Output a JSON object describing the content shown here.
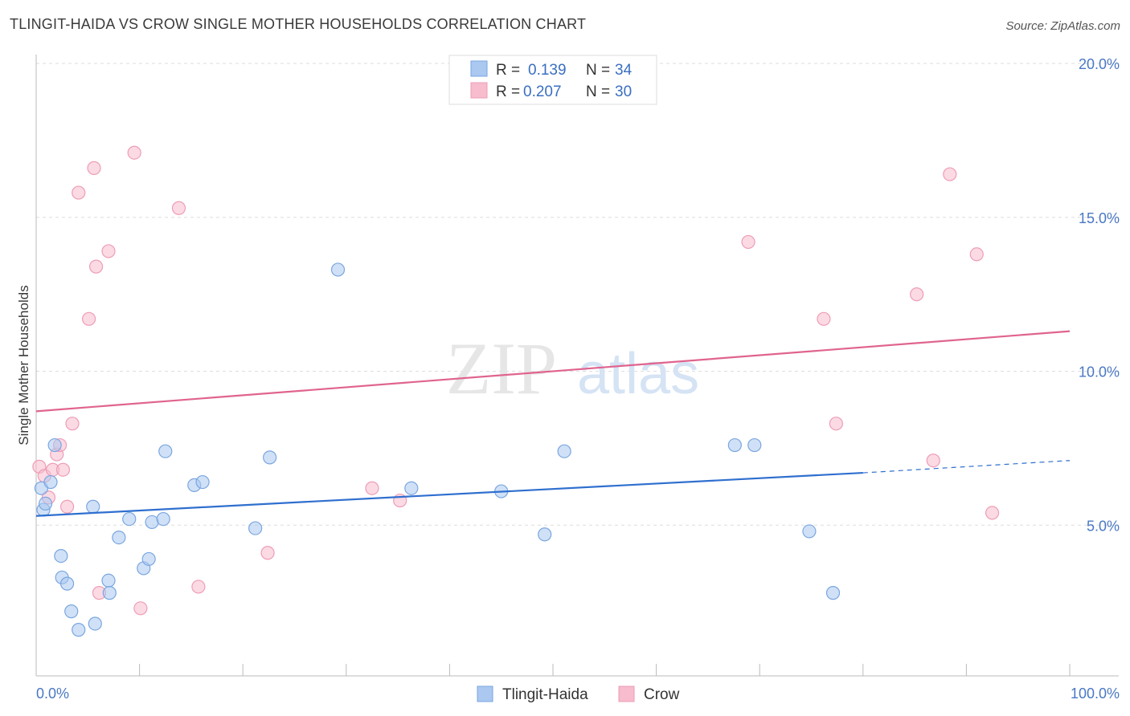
{
  "header": {
    "title": "TLINGIT-HAIDA VS CROW SINGLE MOTHER HOUSEHOLDS CORRELATION CHART",
    "source": "Source: ZipAtlas.com"
  },
  "watermark": {
    "zip": "ZIP",
    "atlas": "atlas"
  },
  "legend": {
    "rows": [
      {
        "r_label": "R =",
        "r_value": "0.139",
        "n_label": "N =",
        "n_value": "34"
      },
      {
        "r_label": "R =",
        "r_value": "0.207",
        "n_label": "N =",
        "n_value": "30"
      }
    ]
  },
  "bottom_legend": [
    "Tlingit-Haida",
    "Crow"
  ],
  "colors": {
    "blue_fill": "#aac8f0",
    "blue_stroke": "#7aa6e0",
    "blue_line": "#2f6fcf",
    "pink_fill": "#f7bccd",
    "pink_stroke": "#ee9db6",
    "pink_line": "#e0648e"
  },
  "chart_data": {
    "type": "scatter",
    "title": "TLINGIT-HAIDA VS CROW SINGLE MOTHER HOUSEHOLDS CORRELATION CHART",
    "xlabel": "",
    "ylabel": "Single Mother Households",
    "xlim": [
      0,
      100
    ],
    "ylim": [
      0,
      20
    ],
    "x_tick_labels": [
      "0.0%",
      "100.0%"
    ],
    "y_ticks": [
      5,
      10,
      15,
      20
    ],
    "y_tick_labels": [
      "5.0%",
      "10.0%",
      "15.0%",
      "20.0%"
    ],
    "series": [
      {
        "name": "Tlingit-Haida",
        "r": 0.139,
        "n": 34,
        "x": [
          0.5,
          0.7,
          0.9,
          1.4,
          1.8,
          2.4,
          2.5,
          3.0,
          3.4,
          4.1,
          5.5,
          5.7,
          7.0,
          7.1,
          8.0,
          9.0,
          10.4,
          10.9,
          11.2,
          12.3,
          12.5,
          15.3,
          16.1,
          21.2,
          22.6,
          29.2,
          36.3,
          45.0,
          49.2,
          51.1,
          67.6,
          69.5,
          74.8,
          77.1
        ],
        "y": [
          6.2,
          5.5,
          5.7,
          6.4,
          7.6,
          4.0,
          3.3,
          3.1,
          2.2,
          1.6,
          5.6,
          1.8,
          3.2,
          2.8,
          4.6,
          5.2,
          3.6,
          3.9,
          5.1,
          5.2,
          7.4,
          6.3,
          6.4,
          4.9,
          7.2,
          13.3,
          6.2,
          6.1,
          4.7,
          7.4,
          7.6,
          7.6,
          4.8,
          2.8
        ],
        "trend": {
          "x0": 0,
          "y0": 5.3,
          "x1": 80,
          "y1": 6.7,
          "dash_x1": 100,
          "dash_y1": 7.1
        }
      },
      {
        "name": "Crow",
        "r": 0.207,
        "n": 30,
        "x": [
          0.3,
          0.8,
          1.2,
          1.6,
          2.0,
          2.3,
          2.6,
          3.0,
          3.5,
          4.1,
          5.1,
          5.6,
          5.8,
          6.1,
          7.0,
          9.5,
          10.1,
          13.8,
          15.7,
          22.4,
          32.5,
          35.2,
          68.9,
          76.2,
          77.4,
          85.2,
          86.8,
          88.4,
          91.0,
          92.5
        ],
        "y": [
          6.9,
          6.6,
          5.9,
          6.8,
          7.3,
          7.6,
          6.8,
          5.6,
          8.3,
          15.8,
          11.7,
          16.6,
          13.4,
          2.8,
          13.9,
          17.1,
          2.3,
          15.3,
          3.0,
          4.1,
          6.2,
          5.8,
          14.2,
          11.7,
          8.3,
          12.5,
          7.1,
          16.4,
          13.8,
          5.4
        ],
        "trend": {
          "x0": 0,
          "y0": 8.7,
          "x1": 100,
          "y1": 11.3
        }
      }
    ]
  }
}
